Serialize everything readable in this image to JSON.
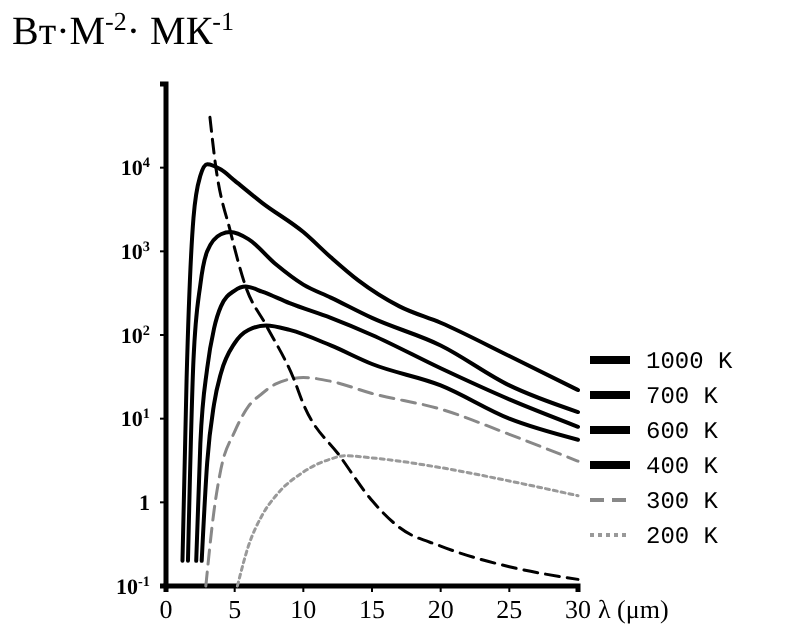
{
  "chart_data": {
    "type": "line",
    "ylabel": "Вт·М$^{-2}$· МК$^{-1}$",
    "xlabel": "λ (μm)",
    "xlim": [
      0,
      30
    ],
    "xticks": [
      0,
      5,
      10,
      15,
      20,
      25,
      30
    ],
    "ylim": [
      0.1,
      100000
    ],
    "log": "y",
    "yticks": [
      {
        "value": 0.1,
        "label": "10$^{-1}$"
      },
      1,
      {
        "value": 10,
        "label": "10$^{1}$"
      },
      {
        "value": 100,
        "label": "10$^{2}$"
      },
      {
        "value": 1000,
        "label": "10$^{3}$"
      },
      {
        "value": 10000,
        "label": "10$^{4}$"
      }
    ],
    "grid": false,
    "legend": "right",
    "series": [
      {
        "name": "1000 K",
        "color": "#000000",
        "line_style": "solid",
        "x": [
          1.2,
          1.5,
          2,
          2.5,
          3,
          4,
          5,
          7,
          10,
          12,
          14,
          17,
          20,
          25,
          30
        ],
        "values": [
          0.2,
          30,
          2500,
          8000,
          11000,
          9500,
          7000,
          3800,
          1700,
          850,
          450,
          220,
          140,
          56,
          22
        ]
      },
      {
        "name": "700 K",
        "color": "#000000",
        "line_style": "solid",
        "x": [
          1.6,
          2,
          2.5,
          3,
          4,
          4.7,
          6,
          8,
          10,
          12,
          15,
          20,
          25,
          30
        ],
        "values": [
          0.2,
          50,
          400,
          1000,
          1600,
          1700,
          1400,
          700,
          400,
          280,
          160,
          75,
          25,
          12
        ]
      },
      {
        "name": "600 K",
        "color": "#000000",
        "line_style": "solid",
        "x": [
          2.2,
          2.5,
          3,
          3.5,
          4,
          5,
          5.8,
          7,
          9,
          12,
          15,
          20,
          25,
          30
        ],
        "values": [
          0.2,
          5,
          40,
          120,
          220,
          340,
          380,
          330,
          240,
          160,
          100,
          40,
          17,
          8
        ]
      },
      {
        "name": "400 K",
        "color": "#000000",
        "line_style": "solid",
        "x": [
          2.6,
          3,
          3.5,
          4,
          5,
          6,
          7.3,
          9,
          12,
          15,
          20,
          25,
          30
        ],
        "values": [
          0.2,
          3,
          15,
          35,
          80,
          115,
          130,
          115,
          75,
          45,
          25,
          10,
          5.6
        ]
      },
      {
        "name": "300 K",
        "color": "#888888",
        "line_style": "dashed",
        "x": [
          2.9,
          3.5,
          4,
          5,
          6,
          7,
          8,
          10,
          12,
          15,
          20,
          25,
          30
        ],
        "values": [
          0.1,
          0.8,
          2.5,
          7,
          14,
          20,
          26,
          31,
          28,
          20,
          13,
          6.5,
          3.1
        ]
      },
      {
        "name": "200 K",
        "color": "#999999",
        "line_style": "dotted",
        "x": [
          5.2,
          6,
          7,
          8,
          10,
          12,
          13,
          15,
          20,
          25,
          30
        ],
        "values": [
          0.1,
          0.3,
          0.7,
          1.2,
          2.3,
          3.3,
          3.6,
          3.4,
          2.6,
          1.8,
          1.2
        ]
      },
      {
        "color": "#000000",
        "line_style": "dashed",
        "x": [
          3.2,
          3.6,
          4.7,
          5.8,
          7.3,
          9.3,
          10,
          12.7,
          15,
          17,
          20,
          25,
          30
        ],
        "values": [
          40000,
          11000,
          1700,
          380,
          130,
          30,
          15,
          3.5,
          1.05,
          0.5,
          0.3,
          0.17,
          0.12
        ]
      }
    ]
  }
}
